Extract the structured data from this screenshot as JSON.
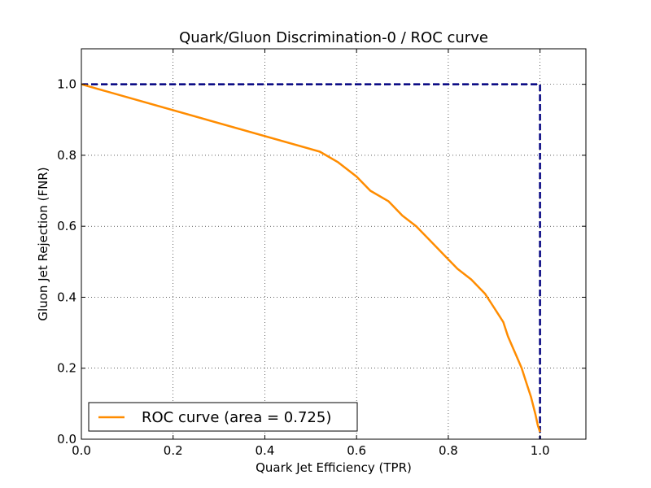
{
  "chart_data": {
    "type": "line",
    "title": "Quark/Gluon Discrimination-0 / ROC curve",
    "xlabel": "Quark Jet Efficiency (TPR)",
    "ylabel": "Gluon Jet Rejection (FNR)",
    "xlim": [
      0.0,
      1.1
    ],
    "ylim": [
      0.0,
      1.1
    ],
    "xticks": [
      "0.0",
      "0.2",
      "0.4",
      "0.6",
      "0.8",
      "1.0"
    ],
    "yticks": [
      "0.0",
      "0.2",
      "0.4",
      "0.6",
      "0.8",
      "1.0"
    ],
    "grid": true,
    "legend_position": "lower-left",
    "series": [
      {
        "name": "ROC curve (area = 0.725)",
        "color": "#ff8c00",
        "style": "solid",
        "x": [
          0.0,
          0.52,
          0.56,
          0.6,
          0.63,
          0.67,
          0.7,
          0.73,
          0.76,
          0.79,
          0.82,
          0.85,
          0.88,
          0.9,
          0.92,
          0.93,
          0.94,
          0.95,
          0.96,
          0.97,
          0.98,
          0.99,
          0.995,
          1.0
        ],
        "y": [
          1.0,
          0.81,
          0.78,
          0.74,
          0.7,
          0.67,
          0.63,
          0.6,
          0.56,
          0.52,
          0.48,
          0.45,
          0.41,
          0.37,
          0.33,
          0.29,
          0.26,
          0.23,
          0.2,
          0.16,
          0.12,
          0.07,
          0.04,
          0.02
        ]
      },
      {
        "color": "#000080",
        "style": "dashed",
        "x": [
          0.0,
          1.0,
          1.0
        ],
        "y": [
          1.0,
          1.0,
          0.0
        ]
      }
    ]
  }
}
